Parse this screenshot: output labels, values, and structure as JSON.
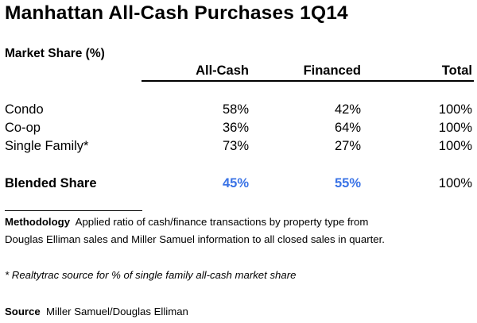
{
  "title": "Manhattan All-Cash Purchases 1Q14",
  "subtitle": "Market Share (%)",
  "columns": [
    "All-Cash",
    "Financed",
    "Total"
  ],
  "rows": [
    {
      "label": "Condo",
      "all_cash": "58%",
      "financed": "42%",
      "total": "100%"
    },
    {
      "label": "Co-op",
      "all_cash": "36%",
      "financed": "64%",
      "total": "100%"
    },
    {
      "label": "Single Family*",
      "all_cash": "73%",
      "financed": "27%",
      "total": "100%"
    }
  ],
  "blended": {
    "label": "Blended Share",
    "all_cash": "45%",
    "financed": "55%",
    "total": "100%"
  },
  "highlight_color": "#3a73e6",
  "methodology": {
    "label": "Methodology",
    "line1": "Applied ratio of cash/finance transactions by property type from",
    "line2": "Douglas Elliman sales and Miller Samuel information to all closed sales in quarter."
  },
  "footnote": "* Realtytrac source for % of single family all-cash market share",
  "source": {
    "label": "Source",
    "text": "Miller Samuel/Douglas Elliman"
  }
}
